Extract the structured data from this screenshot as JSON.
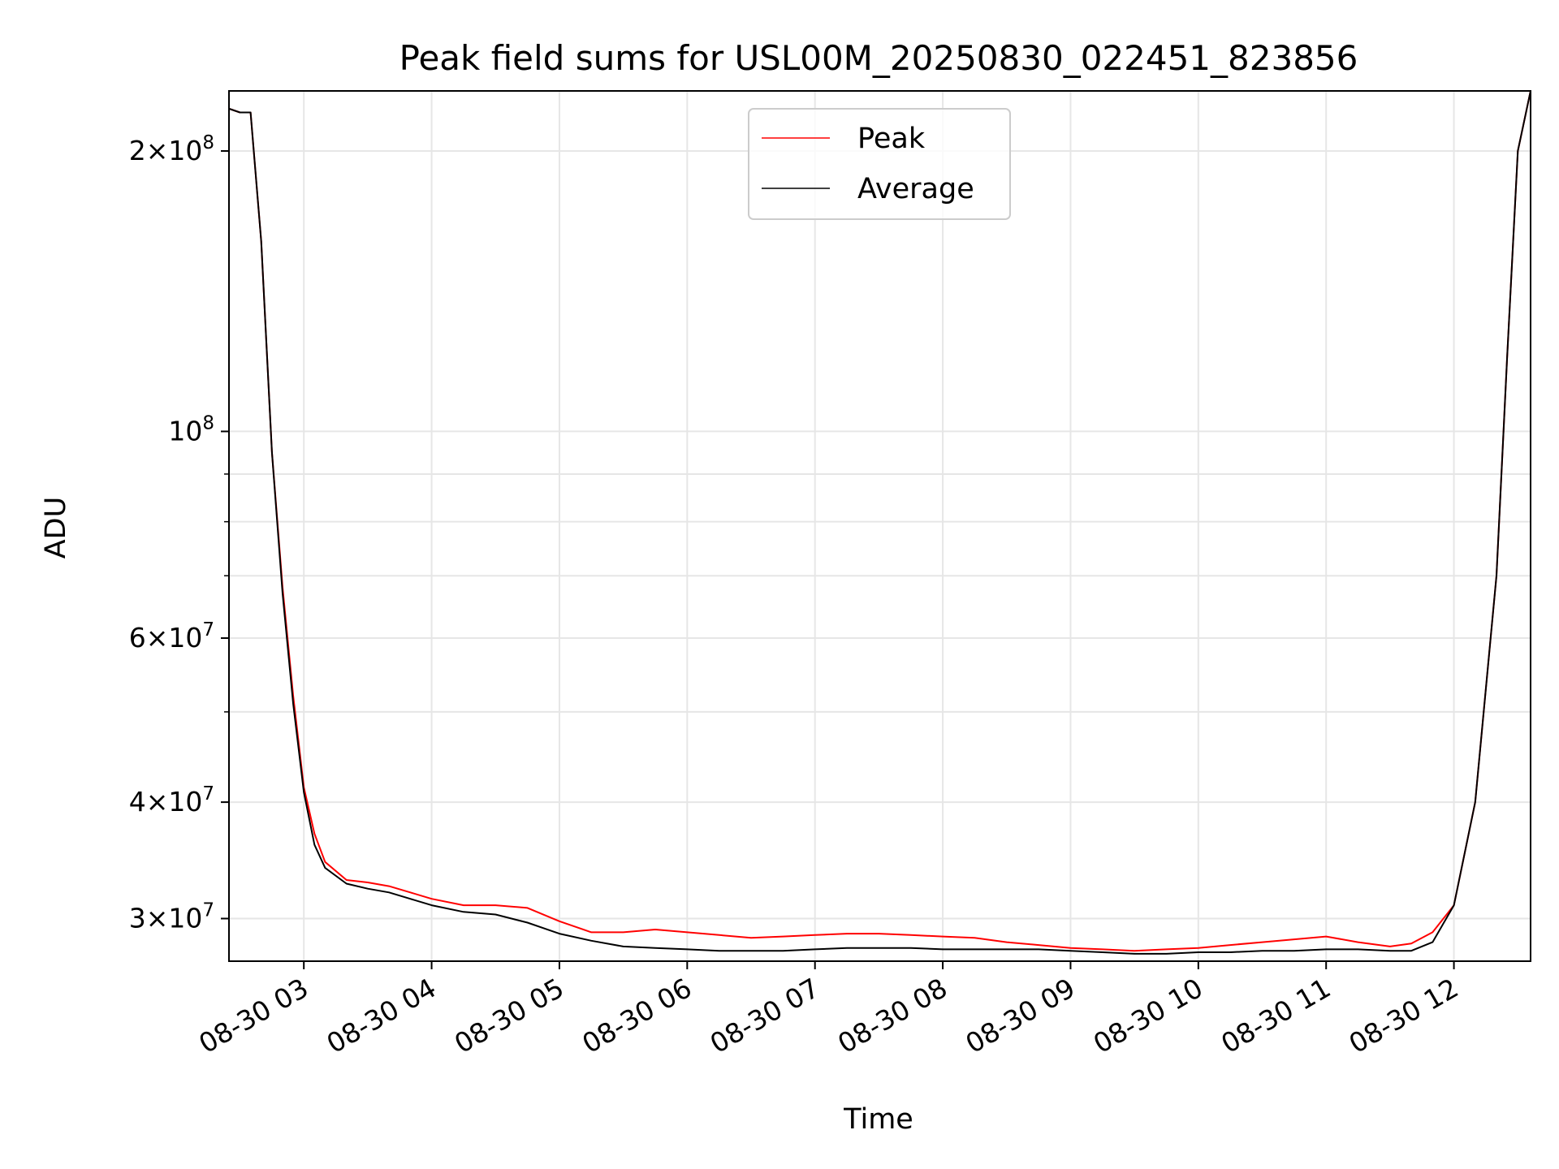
{
  "chart_data": {
    "type": "line",
    "title": "Peak field sums for USL00M_20250830_022451_823856",
    "xlabel": "Time",
    "ylabel": "ADU",
    "yscale": "log",
    "xlim": [
      "2025-08-30T02:24:51",
      "2025-08-30T12:36:00"
    ],
    "ylim": [
      27000000,
      232000000
    ],
    "grid": true,
    "legend_position": "upper center",
    "x_tick_labels": [
      "08-30 03",
      "08-30 04",
      "08-30 05",
      "08-30 06",
      "08-30 07",
      "08-30 08",
      "08-30 09",
      "08-30 10",
      "08-30 11",
      "08-30 12"
    ],
    "y_tick_labels": [
      {
        "value": 30000000,
        "mantissa": "3",
        "exponent": "7"
      },
      {
        "value": 40000000,
        "mantissa": "4",
        "exponent": "7"
      },
      {
        "value": 60000000,
        "mantissa": "6",
        "exponent": "7"
      },
      {
        "value": 100000000,
        "mantissa": "",
        "exponent": "8"
      },
      {
        "value": 200000000,
        "mantissa": "2",
        "exponent": "8"
      }
    ],
    "series": [
      {
        "name": "Peak",
        "color": "#ff0000",
        "x": [
          "02:25",
          "02:30",
          "02:35",
          "02:40",
          "02:45",
          "02:50",
          "02:55",
          "03:00",
          "03:05",
          "03:10",
          "03:20",
          "03:30",
          "03:40",
          "03:50",
          "04:00",
          "04:15",
          "04:30",
          "04:45",
          "05:00",
          "05:15",
          "05:30",
          "05:45",
          "06:00",
          "06:15",
          "06:30",
          "06:45",
          "07:00",
          "07:15",
          "07:30",
          "07:45",
          "08:00",
          "08:15",
          "08:30",
          "08:45",
          "09:00",
          "09:15",
          "09:30",
          "09:45",
          "10:00",
          "10:15",
          "10:30",
          "10:45",
          "11:00",
          "11:15",
          "11:30",
          "11:40",
          "11:50",
          "12:00",
          "12:10",
          "12:20",
          "12:25",
          "12:30",
          "12:36"
        ],
        "y": [
          222000000,
          220000000,
          220000000,
          160000000,
          95000000,
          68000000,
          52000000,
          41500000,
          37000000,
          34500000,
          33000000,
          32800000,
          32500000,
          32000000,
          31500000,
          31000000,
          31000000,
          30800000,
          29800000,
          29000000,
          29000000,
          29200000,
          29000000,
          28800000,
          28600000,
          28700000,
          28800000,
          28900000,
          28900000,
          28800000,
          28700000,
          28600000,
          28300000,
          28100000,
          27900000,
          27800000,
          27700000,
          27800000,
          27900000,
          28100000,
          28300000,
          28500000,
          28700000,
          28300000,
          28000000,
          28200000,
          29000000,
          31000000,
          40000000,
          70000000,
          120000000,
          200000000,
          232000000
        ]
      },
      {
        "name": "Average",
        "color": "#000000",
        "x": [
          "02:25",
          "02:30",
          "02:35",
          "02:40",
          "02:45",
          "02:50",
          "02:55",
          "03:00",
          "03:05",
          "03:10",
          "03:20",
          "03:30",
          "03:40",
          "03:50",
          "04:00",
          "04:15",
          "04:30",
          "04:45",
          "05:00",
          "05:15",
          "05:30",
          "05:45",
          "06:00",
          "06:15",
          "06:30",
          "06:45",
          "07:00",
          "07:15",
          "07:30",
          "07:45",
          "08:00",
          "08:15",
          "08:30",
          "08:45",
          "09:00",
          "09:15",
          "09:30",
          "09:45",
          "10:00",
          "10:15",
          "10:30",
          "10:45",
          "11:00",
          "11:15",
          "11:30",
          "11:40",
          "11:50",
          "12:00",
          "12:10",
          "12:20",
          "12:25",
          "12:30",
          "12:36"
        ],
        "y": [
          222000000,
          220000000,
          220000000,
          160000000,
          95000000,
          67000000,
          51000000,
          41000000,
          36000000,
          34000000,
          32700000,
          32300000,
          32000000,
          31500000,
          31000000,
          30500000,
          30300000,
          29700000,
          28900000,
          28400000,
          28000000,
          27900000,
          27800000,
          27700000,
          27700000,
          27700000,
          27800000,
          27900000,
          27900000,
          27900000,
          27800000,
          27800000,
          27800000,
          27800000,
          27700000,
          27600000,
          27500000,
          27500000,
          27600000,
          27600000,
          27700000,
          27700000,
          27800000,
          27800000,
          27700000,
          27700000,
          28300000,
          31000000,
          40000000,
          70000000,
          120000000,
          200000000,
          232000000
        ]
      }
    ]
  }
}
